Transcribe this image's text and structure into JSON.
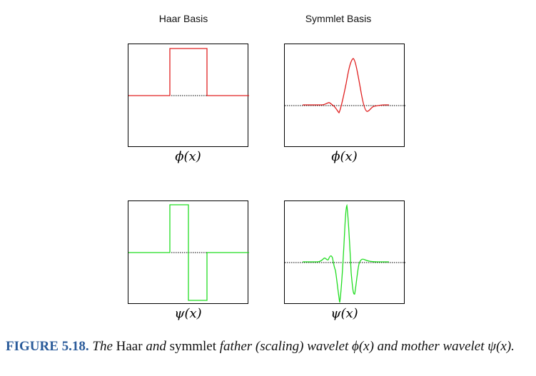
{
  "columns": {
    "haar_title": "Haar Basis",
    "symmlet_title": "Symmlet Basis"
  },
  "panels": {
    "haar_phi_label": "ϕ(x)",
    "symmlet_phi_label": "ϕ(x)",
    "haar_psi_label": "ψ(x)",
    "symmlet_psi_label": "ψ(x)"
  },
  "colors": {
    "father": "#e02020",
    "mother": "#22dd22",
    "caption_label": "#2a5b9a"
  },
  "caption": {
    "figure_label": "FIGURE 5.18.",
    "text_1": "The",
    "text_2": "Haar",
    "text_3": "and",
    "text_4": "symmlet",
    "text_5": "father (scaling) wavelet ϕ(x) and mother",
    "text_6": "wavelet ψ(x)."
  }
}
